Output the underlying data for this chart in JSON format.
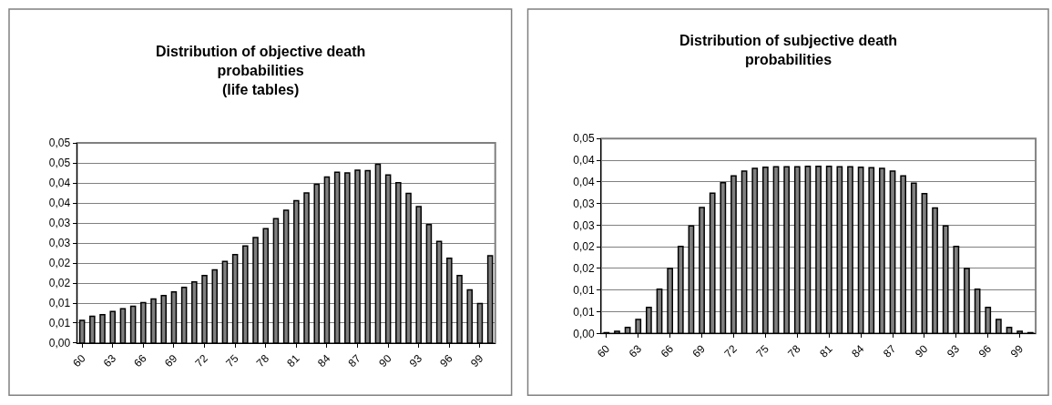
{
  "chart_data": [
    {
      "type": "bar",
      "title": "Distribution of objective death probabilities\n(life tables)",
      "categories": [
        "60",
        null,
        null,
        "63",
        null,
        null,
        "66",
        null,
        null,
        "69",
        null,
        null,
        "72",
        null,
        null,
        "75",
        null,
        null,
        "78",
        null,
        null,
        "81",
        null,
        null,
        "84",
        null,
        null,
        "87",
        null,
        null,
        "90",
        null,
        null,
        "93",
        null,
        null,
        "96",
        null,
        null,
        "99",
        null
      ],
      "series": [
        {
          "color": "#808080",
          "values": [
            0.0057,
            0.0067,
            0.0071,
            0.0079,
            0.0086,
            0.0092,
            0.0101,
            0.011,
            0.0119,
            0.0128,
            0.0139,
            0.0153,
            0.0169,
            0.0183,
            0.0204,
            0.0221,
            0.0243,
            0.0264,
            0.0286,
            0.0311,
            0.0332,
            0.0356,
            0.0375,
            0.0397,
            0.0415,
            0.0427,
            0.0425,
            0.0432,
            0.0431,
            0.0447,
            0.042,
            0.0401,
            0.0374,
            0.0341,
            0.0296,
            0.0254,
            0.0212,
            0.0169,
            0.0133,
            0.0099,
            0.0218
          ]
        }
      ],
      "ylim": [
        0,
        0.05
      ],
      "yticks": [
        {
          "value": 0,
          "label": "0,00"
        },
        {
          "value": 0.005,
          "label": "0,01"
        },
        {
          "value": 0.01,
          "label": "0,01"
        },
        {
          "value": 0.015,
          "label": "0,02"
        },
        {
          "value": 0.02,
          "label": "0,02"
        },
        {
          "value": 0.025,
          "label": "0,03"
        },
        {
          "value": 0.03,
          "label": "0,03"
        },
        {
          "value": 0.035,
          "label": "0,04"
        },
        {
          "value": 0.04,
          "label": "0,04"
        },
        {
          "value": 0.045,
          "label": "0,05"
        },
        {
          "value": 0.05,
          "label": "0,05"
        }
      ],
      "grid": "y"
    },
    {
      "type": "bar",
      "title": "Distribution of subjective death probabilities",
      "categories": [
        "60",
        null,
        null,
        "63",
        null,
        null,
        "66",
        null,
        null,
        "69",
        null,
        null,
        "72",
        null,
        null,
        "75",
        null,
        null,
        "78",
        null,
        null,
        "81",
        null,
        null,
        "84",
        null,
        null,
        "87",
        null,
        null,
        "90",
        null,
        null,
        "93",
        null,
        null,
        "96",
        null,
        null,
        "99",
        null
      ],
      "series": [
        {
          "color": "#808080",
          "values": [
            0.0002,
            0.0005,
            0.0014,
            0.0032,
            0.006,
            0.0102,
            0.015,
            0.0201,
            0.0248,
            0.0291,
            0.0324,
            0.0348,
            0.0364,
            0.0375,
            0.0381,
            0.0384,
            0.0385,
            0.0385,
            0.0385,
            0.0386,
            0.0386,
            0.0386,
            0.0385,
            0.0385,
            0.0384,
            0.0383,
            0.0381,
            0.0375,
            0.0364,
            0.0347,
            0.0323,
            0.029,
            0.0248,
            0.0201,
            0.015,
            0.0102,
            0.006,
            0.0032,
            0.0014,
            0.0005,
            0.0002
          ]
        }
      ],
      "ylim": [
        0,
        0.045
      ],
      "yticks": [
        {
          "value": 0,
          "label": "0,00"
        },
        {
          "value": 0.005,
          "label": "0,01"
        },
        {
          "value": 0.01,
          "label": "0,01"
        },
        {
          "value": 0.015,
          "label": "0,02"
        },
        {
          "value": 0.02,
          "label": "0,02"
        },
        {
          "value": 0.025,
          "label": "0,03"
        },
        {
          "value": 0.03,
          "label": "0,03"
        },
        {
          "value": 0.035,
          "label": "0,04"
        },
        {
          "value": 0.04,
          "label": "0,04"
        },
        {
          "value": 0.045,
          "label": "0,05"
        }
      ],
      "grid": "y"
    }
  ]
}
